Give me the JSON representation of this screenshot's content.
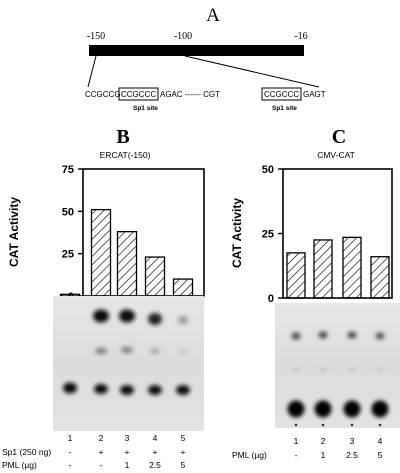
{
  "panelA": {
    "letter": "A",
    "coords": [
      "-150",
      "-100",
      "-16"
    ],
    "seq_left": "CCGCCG",
    "box1": "CCGCCC",
    "seq_mid": "AGAC ------ CGT",
    "box2": "CCGCCC",
    "seq_right": "GAGT",
    "site1": "Sp1 site",
    "site2": "Sp1 site"
  },
  "panelB": {
    "letter": "B",
    "title": "ERCAT(-150)",
    "ylabel": "CAT  Activity",
    "lanes": [
      "1",
      "2",
      "3",
      "4",
      "5"
    ],
    "sp1_label": "Sp1 (250 ng)",
    "sp1_row": [
      "-",
      "+",
      "+",
      "+",
      "+"
    ],
    "pml_label": "PML (µg)",
    "pml_row": [
      "-",
      "-",
      "1",
      "2.5",
      "5"
    ]
  },
  "panelC": {
    "letter": "C",
    "title": "CMV-CAT",
    "ylabel": "CAT  Activity",
    "lanes": [
      "1",
      "2",
      "3",
      "4"
    ],
    "pml_label": "PML (µg)",
    "pml_row": [
      "-",
      "1",
      "2.5",
      "5"
    ]
  },
  "chart_data": [
    {
      "type": "bar",
      "title": "ERCAT(-150)",
      "ylabel": "CAT  Activity",
      "categories": [
        "1",
        "2",
        "3",
        "4",
        "5"
      ],
      "values": [
        1,
        51,
        38,
        23,
        10
      ],
      "ylim": [
        0,
        75
      ],
      "yticks": [
        0,
        25,
        50,
        75
      ]
    },
    {
      "type": "bar",
      "title": "CMV-CAT",
      "ylabel": "CAT  Activity",
      "categories": [
        "1",
        "2",
        "3",
        "4"
      ],
      "values": [
        17.5,
        22.5,
        23.5,
        16
      ],
      "ylim": [
        0,
        50
      ],
      "yticks": [
        0,
        25,
        50
      ]
    }
  ]
}
